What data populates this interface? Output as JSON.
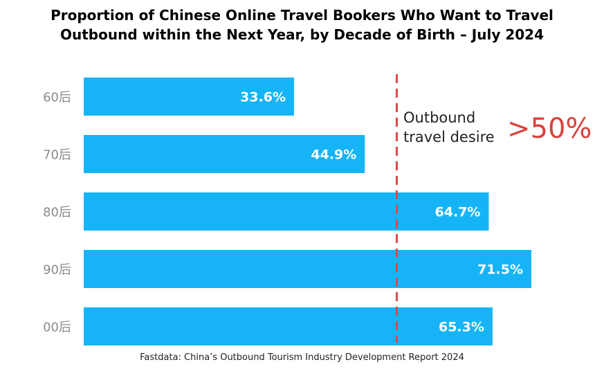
{
  "chart_data": {
    "type": "bar",
    "orientation": "horizontal",
    "title_lines": [
      "Proportion of Chinese Online Travel Bookers Who Want to Travel",
      "Outbound within the Next Year, by Decade of Birth – July 2024"
    ],
    "categories": [
      "60后",
      "70后",
      "80后",
      "90后",
      "00后"
    ],
    "values": [
      33.6,
      44.9,
      64.7,
      71.5,
      65.3
    ],
    "value_labels": [
      "33.6%",
      "44.9%",
      "64.7%",
      "71.5%",
      "65.3%"
    ],
    "xlim": [
      0,
      71.5
    ],
    "reference_line": {
      "value": 50,
      "style": "dashed",
      "color": "#d84a4a"
    },
    "annotation": {
      "text_lines": [
        "Outbound",
        "travel desire"
      ],
      "highlight": ">50%",
      "highlight_color": "#d8423b"
    },
    "bar_color": "#16b4f7",
    "grid": false,
    "legend": "none",
    "source": "Fastdata: China’s Outbound Tourism Industry Development Report 2024"
  }
}
